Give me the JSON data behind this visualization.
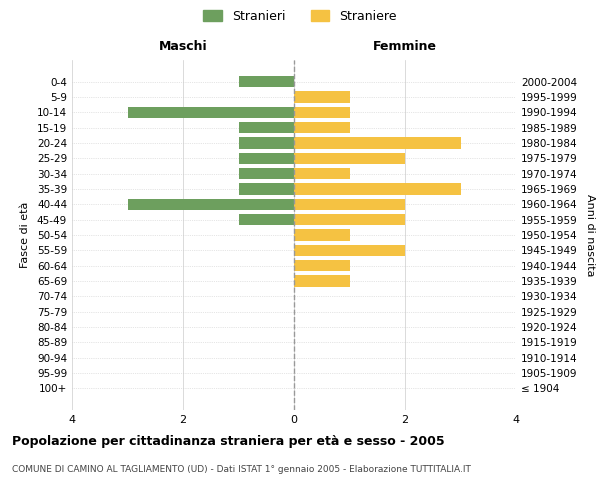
{
  "age_groups": [
    "100+",
    "95-99",
    "90-94",
    "85-89",
    "80-84",
    "75-79",
    "70-74",
    "65-69",
    "60-64",
    "55-59",
    "50-54",
    "45-49",
    "40-44",
    "35-39",
    "30-34",
    "25-29",
    "20-24",
    "15-19",
    "10-14",
    "5-9",
    "0-4"
  ],
  "birth_years": [
    "≤ 1904",
    "1905-1909",
    "1910-1914",
    "1915-1919",
    "1920-1924",
    "1925-1929",
    "1930-1934",
    "1935-1939",
    "1940-1944",
    "1945-1949",
    "1950-1954",
    "1955-1959",
    "1960-1964",
    "1965-1969",
    "1970-1974",
    "1975-1979",
    "1980-1984",
    "1985-1989",
    "1990-1994",
    "1995-1999",
    "2000-2004"
  ],
  "maschi": [
    0,
    0,
    0,
    0,
    0,
    0,
    0,
    0,
    0,
    0,
    0,
    1,
    3,
    1,
    1,
    1,
    1,
    1,
    3,
    0,
    1
  ],
  "femmine": [
    0,
    0,
    0,
    0,
    0,
    0,
    0,
    1,
    1,
    2,
    1,
    2,
    2,
    3,
    1,
    2,
    3,
    1,
    1,
    1,
    0
  ],
  "color_maschi": "#6d9f5e",
  "color_femmine": "#f5c242",
  "title_main": "Popolazione per cittadinanza straniera per età e sesso - 2005",
  "title_sub": "COMUNE DI CAMINO AL TAGLIAMENTO (UD) - Dati ISTAT 1° gennaio 2005 - Elaborazione TUTTITALIA.IT",
  "label_maschi": "Stranieri",
  "label_femmine": "Straniere",
  "label_left": "Maschi",
  "label_right": "Femmine",
  "ylabel_left": "Fasce di età",
  "ylabel_right": "Anni di nascita",
  "xlim": 4,
  "background_color": "#ffffff"
}
